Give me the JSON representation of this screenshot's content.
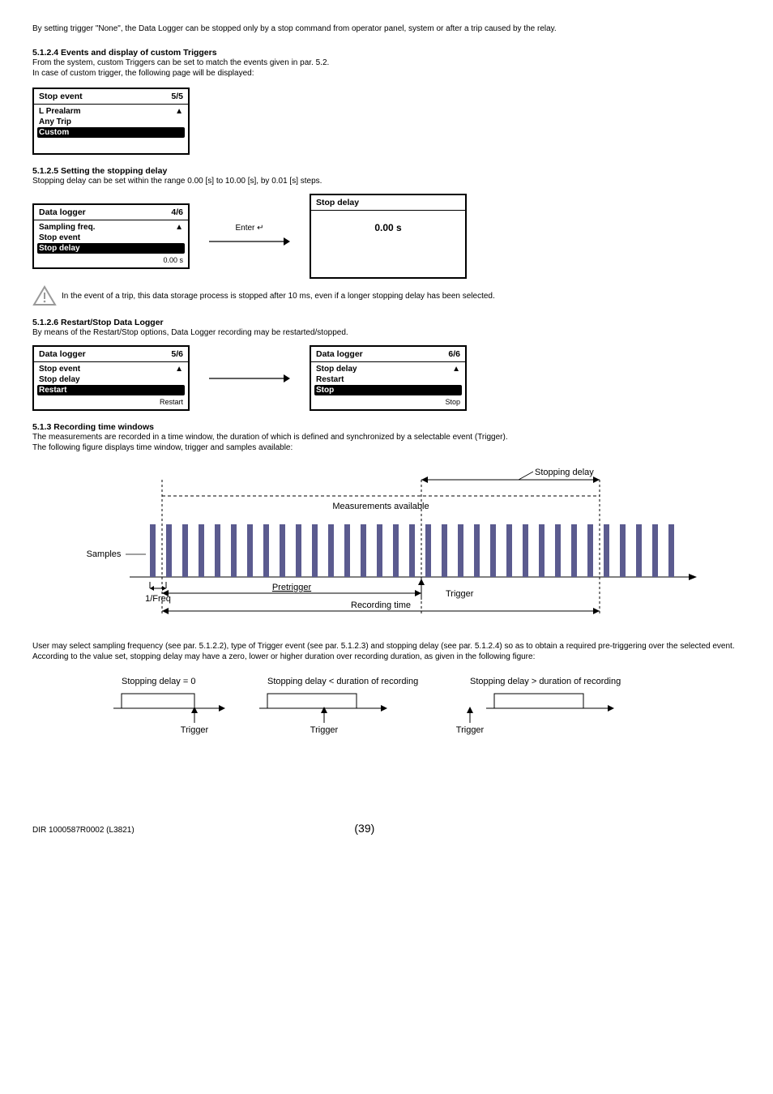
{
  "top_line": "By setting trigger \"None\", the Data Logger can be stopped only by a stop command from operator panel, system or after a trip caused by the relay.",
  "sec_5124": {
    "heading": "5.1.2.4 Events and display of custom Triggers",
    "line1": "From the system, custom Triggers can be set to match the events given in par. 5.2.",
    "line2": "In case of custom trigger, the following page will be displayed:",
    "menu": {
      "title": "Stop event",
      "page": "5/5",
      "items": [
        "L Prealarm",
        "Any Trip",
        "Custom"
      ],
      "selected_index": 2
    }
  },
  "sec_5125": {
    "heading": "5.1.2.5      Setting the stopping delay",
    "line1": "Stopping delay can be set within the range 0.00 [s] to 10.00 [s], by 0.01 [s] steps.",
    "menu": {
      "title": "Data logger",
      "page": "4/6",
      "items": [
        "Sampling freq.",
        "Stop event",
        "Stop delay"
      ],
      "selected_index": 2,
      "footer": "0.00 s"
    },
    "enter_label": "Enter ↵",
    "valbox": {
      "title": "Stop delay",
      "value": "0.00 s"
    },
    "warning": "In the event of a trip, this data storage process is stopped after 10 ms, even if a longer stopping delay has been selected."
  },
  "sec_5126": {
    "heading": "5.1.2.6      Restart/Stop Data Logger",
    "line1": "By means of the Restart/Stop options, Data Logger recording may be restarted/stopped.",
    "menu_left": {
      "title": "Data logger",
      "page": "5/6",
      "items": [
        "Stop event",
        "Stop delay",
        "Restart"
      ],
      "selected_index": 2,
      "footer": "Restart"
    },
    "menu_right": {
      "title": "Data logger",
      "page": "6/6",
      "items": [
        "Stop delay",
        "Restart",
        "Stop"
      ],
      "selected_index": 2,
      "footer": "Stop"
    }
  },
  "sec_513": {
    "heading": "5.1.3      Recording time windows",
    "line1": "The measurements are recorded in a time window, the duration of which is defined and synchronized by a selectable event (Trigger).",
    "line2": "The following figure displays time window, trigger and samples available:",
    "after1": "User may select sampling frequency (see par. 5.1.2.2), type of Trigger event (see par. 5.1.2.3) and stopping delay (see par. 5.1.2.4) so as to obtain a required pre-triggering over the selected event.",
    "after2": "According to the value set, stopping delay may have a zero, lower or higher duration over recording duration, as given in the following figure:",
    "diagram": {
      "labels": {
        "stopping_delay": "Stopping delay",
        "measurements": "Measurements available",
        "samples": "Samples",
        "pretrigger": "Pretrigger",
        "trigger": "Trigger",
        "freq": "1/Freq",
        "recording_time": "Recording time"
      },
      "colors": {
        "bar": "#5b5b8f",
        "axis": "#000000",
        "dash": "#000000"
      }
    },
    "cases": {
      "c1": "Stopping delay = 0",
      "c2": "Stopping delay < duration of recording",
      "c3": "Stopping delay > duration of recording",
      "trigger": "Trigger"
    }
  },
  "footer": {
    "id": "DIR 1000587R0002 (L3821)",
    "page": "(39)"
  }
}
